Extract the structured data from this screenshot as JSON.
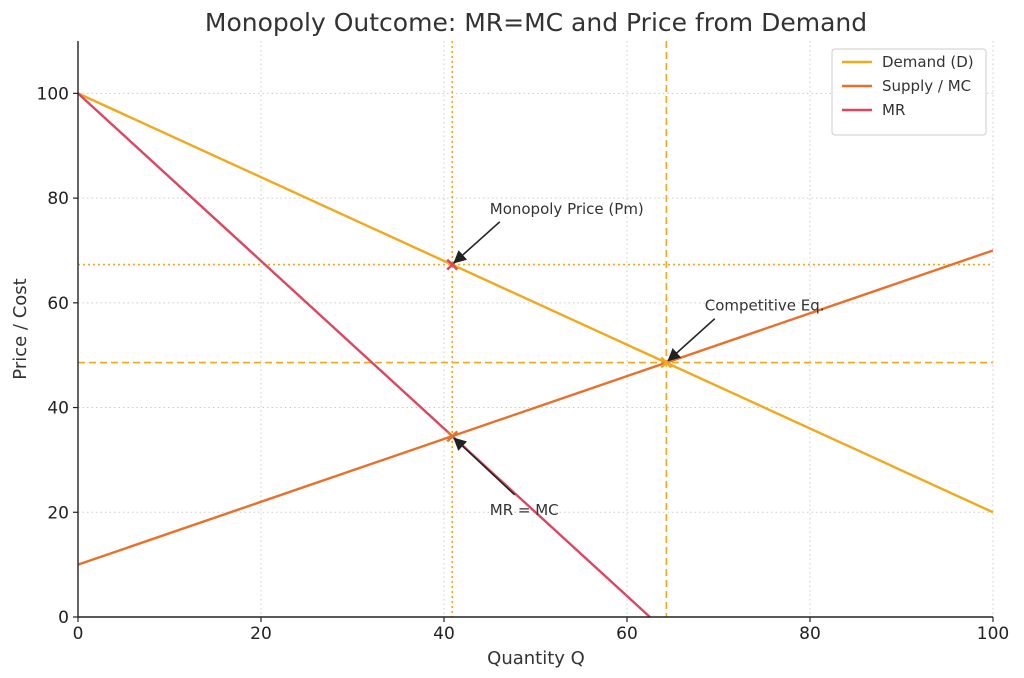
{
  "chart_data": {
    "type": "line",
    "title": "Monopoly Outcome: MR=MC and Price from Demand",
    "xlabel": "Quantity Q",
    "ylabel": "Price / Cost",
    "xlim": [
      0,
      100
    ],
    "ylim": [
      0,
      110
    ],
    "xticks": [
      0,
      20,
      40,
      60,
      80,
      100
    ],
    "yticks": [
      0,
      20,
      40,
      60,
      80,
      100
    ],
    "grid": true,
    "legend_position": "top-right",
    "series": [
      {
        "name": "Demand (D)",
        "color": "#f0a91d",
        "x": [
          0,
          100
        ],
        "y": [
          100,
          20
        ]
      },
      {
        "name": "Supply / MC",
        "color": "#e8702a",
        "x": [
          0,
          100
        ],
        "y": [
          10,
          70
        ]
      },
      {
        "name": "MR",
        "color": "#dc4660",
        "x": [
          0,
          62.5
        ],
        "y": [
          100,
          0
        ]
      }
    ],
    "reference_lines": [
      {
        "orientation": "vertical",
        "value": 40.9,
        "style": "dotted",
        "color": "#f0a91d"
      },
      {
        "orientation": "horizontal",
        "value": 67.3,
        "style": "dotted",
        "color": "#f0a91d"
      },
      {
        "orientation": "vertical",
        "value": 64.3,
        "style": "dashed",
        "color": "#f0a91d"
      },
      {
        "orientation": "horizontal",
        "value": 48.6,
        "style": "dashed",
        "color": "#f0a91d"
      }
    ],
    "markers": [
      {
        "x": 40.9,
        "y": 67.3,
        "color": "#dc4660"
      },
      {
        "x": 40.9,
        "y": 34.5,
        "color": "#e8702a"
      },
      {
        "x": 64.3,
        "y": 48.6,
        "color": "#f0a91d"
      }
    ],
    "annotations": [
      {
        "text": "Monopoly Price (Pm)",
        "x": 40.9,
        "y": 67.3,
        "text_x": 45,
        "text_y": 77
      },
      {
        "text": "Competitive Eq.",
        "x": 64.3,
        "y": 48.6,
        "text_x": 68.5,
        "text_y": 58.5
      },
      {
        "text": "MR = MC",
        "x": 40.9,
        "y": 34.5,
        "text_x": 45,
        "text_y": 19.5
      }
    ]
  }
}
